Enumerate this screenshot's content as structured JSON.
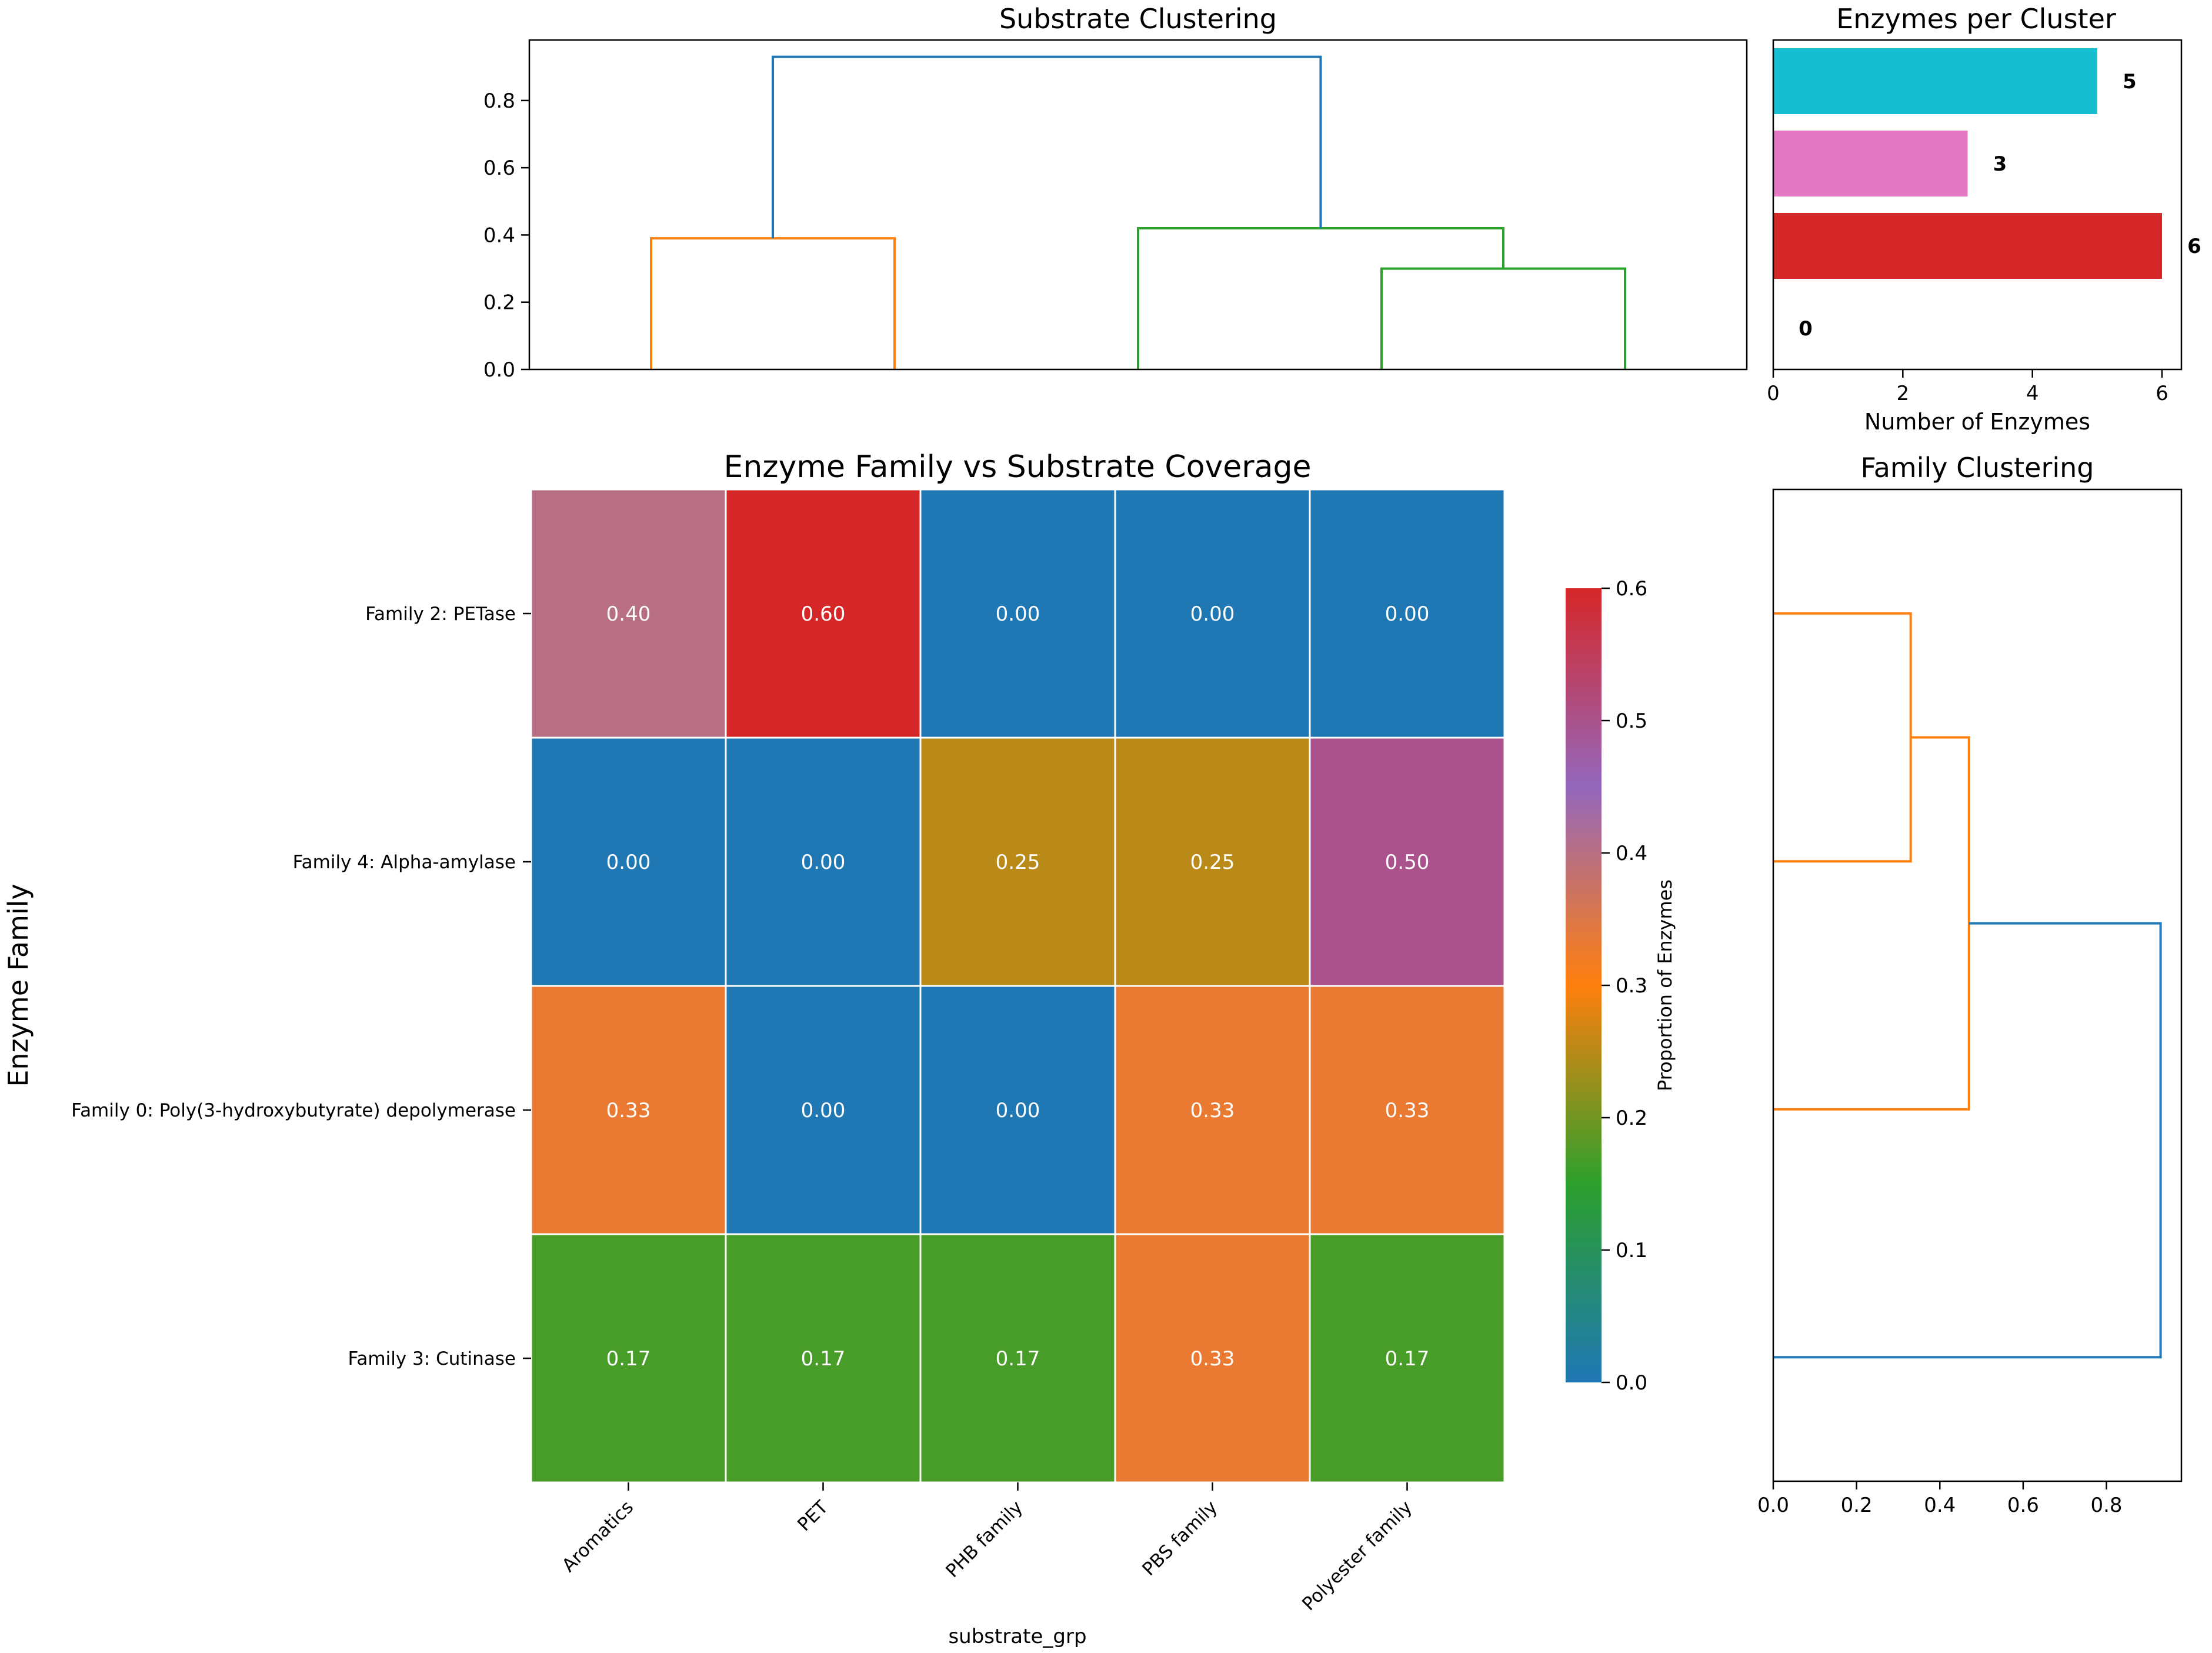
{
  "chart_data": [
    {
      "panel": "substrate-dendrogram",
      "type": "dendrogram",
      "title": "Substrate Clustering",
      "orientation": "top",
      "ylim": [
        0,
        0.98
      ],
      "yticks": [
        0.0,
        0.2,
        0.4,
        0.6,
        0.8
      ],
      "ytick_labels": [
        "0.0",
        "0.2",
        "0.4",
        "0.6",
        "0.8"
      ],
      "leaf_count": 5,
      "links": [
        {
          "left_x": 0.5,
          "left_y": 0.0,
          "right_x": 1.5,
          "right_y": 0.0,
          "height": 0.39,
          "color": "#ff7f0e"
        },
        {
          "left_x": 3.5,
          "left_y": 0.0,
          "right_x": 4.5,
          "right_y": 0.0,
          "height": 0.3,
          "color": "#2ca02c"
        },
        {
          "left_x": 2.5,
          "left_y": 0.0,
          "right_x": 4.0,
          "right_y": 0.3,
          "height": 0.42,
          "color": "#2ca02c"
        },
        {
          "left_x": 1.0,
          "left_y": 0.39,
          "right_x": 3.25,
          "right_y": 0.42,
          "height": 0.93,
          "color": "#1f77b4"
        }
      ]
    },
    {
      "panel": "enzymes-per-cluster",
      "type": "bar",
      "orientation": "horizontal",
      "title": "Enzymes per Cluster",
      "xlabel": "Number of Enzymes",
      "xlim": [
        0,
        6.3
      ],
      "xticks": [
        0,
        2,
        4,
        6
      ],
      "xtick_labels": [
        "0",
        "2",
        "4",
        "6"
      ],
      "values": [
        5,
        3,
        6,
        0
      ],
      "value_labels": [
        "5",
        "3",
        "6",
        "0"
      ],
      "colors": [
        "#17becf",
        "#e377c2",
        "#d62728",
        "#7f7f7f"
      ]
    },
    {
      "panel": "heatmap",
      "type": "heatmap",
      "title": "Enzyme Family vs Substrate Coverage",
      "xlabel": "substrate_grp",
      "ylabel": "Enzyme Family",
      "columns": [
        "Aromatics",
        "PET",
        "PHB family",
        "PBS family",
        "Polyester family"
      ],
      "rows": [
        "Family 2: PETase",
        "Family 4: Alpha-amylase",
        "Family 0: Poly(3-hydroxybutyrate) depolymerase",
        "Family 3: Cutinase"
      ],
      "values": [
        [
          0.4,
          0.6,
          0.0,
          0.0,
          0.0
        ],
        [
          0.0,
          0.0,
          0.25,
          0.25,
          0.5
        ],
        [
          0.33,
          0.0,
          0.0,
          0.33,
          0.33
        ],
        [
          0.17,
          0.17,
          0.17,
          0.33,
          0.17
        ]
      ],
      "cell_labels": [
        [
          "0.40",
          "0.60",
          "0.00",
          "0.00",
          "0.00"
        ],
        [
          "0.00",
          "0.00",
          "0.25",
          "0.25",
          "0.50"
        ],
        [
          "0.33",
          "0.00",
          "0.00",
          "0.33",
          "0.33"
        ],
        [
          "0.17",
          "0.17",
          "0.17",
          "0.33",
          "0.17"
        ]
      ],
      "colorbar": {
        "label": "Proportion of Enzymes",
        "range": [
          0.0,
          0.6
        ],
        "ticks": [
          0.0,
          0.1,
          0.2,
          0.3,
          0.4,
          0.5,
          0.6
        ],
        "tick_labels": [
          "0.0",
          "0.1",
          "0.2",
          "0.3",
          "0.4",
          "0.5",
          "0.6"
        ],
        "colormap": [
          "#1f77b4",
          "#2ca02c",
          "#ff7f0e",
          "#9467bd",
          "#d62728"
        ]
      }
    },
    {
      "panel": "family-dendrogram",
      "type": "dendrogram",
      "title": "Family Clustering",
      "orientation": "right",
      "xlim": [
        0,
        0.98
      ],
      "xticks": [
        0.0,
        0.2,
        0.4,
        0.6,
        0.8
      ],
      "xtick_labels": [
        "0.0",
        "0.2",
        "0.4",
        "0.6",
        "0.8"
      ],
      "leaf_count": 4,
      "links": [
        {
          "a_y": 0.5,
          "a_h": 0.0,
          "b_y": 1.5,
          "b_h": 0.0,
          "height": 0.33,
          "color": "#ff7f0e"
        },
        {
          "a_y": 1.0,
          "a_h": 0.33,
          "b_y": 2.5,
          "b_h": 0.0,
          "height": 0.47,
          "color": "#ff7f0e"
        },
        {
          "a_y": 1.75,
          "a_h": 0.47,
          "b_y": 3.5,
          "b_h": 0.0,
          "height": 0.93,
          "color": "#1f77b4"
        }
      ]
    }
  ]
}
